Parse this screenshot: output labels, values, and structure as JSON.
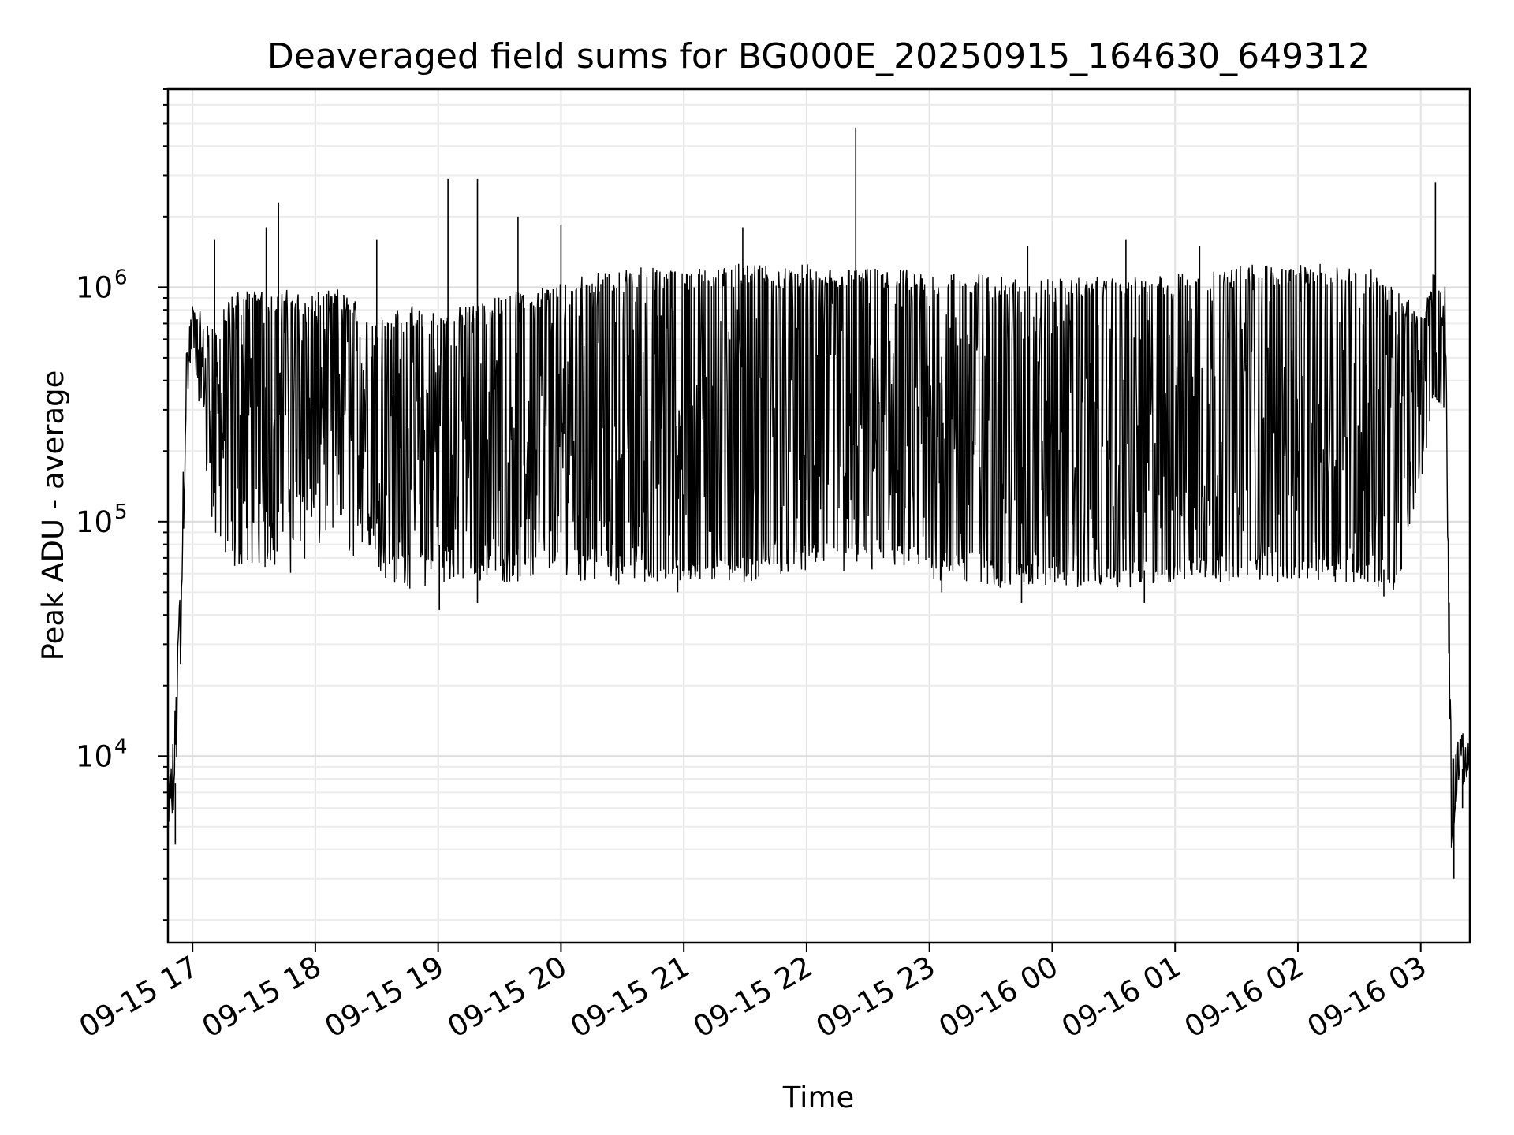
{
  "chart_data": {
    "type": "line",
    "title": "Deaveraged field sums for BG000E_20250915_164630_649312",
    "xlabel": "Time",
    "ylabel": "Peak ADU - average",
    "yscale": "log",
    "ylim": [
      1600,
      7000000
    ],
    "xlim": [
      -0.2,
      10.4
    ],
    "x_unit": "hours since 09-15 17:00",
    "grid": true,
    "x_ticks": [
      {
        "x": 0,
        "label": "09-15 17"
      },
      {
        "x": 1,
        "label": "09-15 18"
      },
      {
        "x": 2,
        "label": "09-15 19"
      },
      {
        "x": 3,
        "label": "09-15 20"
      },
      {
        "x": 4,
        "label": "09-15 21"
      },
      {
        "x": 5,
        "label": "09-15 22"
      },
      {
        "x": 6,
        "label": "09-15 23"
      },
      {
        "x": 7,
        "label": "09-16 00"
      },
      {
        "x": 8,
        "label": "09-16 01"
      },
      {
        "x": 9,
        "label": "09-16 02"
      },
      {
        "x": 10,
        "label": "09-16 03"
      }
    ],
    "y_ticks": [
      {
        "value": 10000,
        "base": "10",
        "exp": "4"
      },
      {
        "value": 100000,
        "base": "10",
        "exp": "5"
      },
      {
        "value": 1000000,
        "base": "10",
        "exp": "6"
      }
    ],
    "series": [
      {
        "name": "Peak ADU - average",
        "envelope_x": [
          -0.2,
          -0.15,
          -0.1,
          -0.05,
          0,
          0.1,
          0.2,
          0.3,
          0.4,
          0.5,
          0.6,
          0.7,
          0.8,
          0.9,
          1.0,
          1.2,
          1.4,
          1.6,
          1.8,
          2.0,
          2.2,
          2.4,
          2.6,
          2.8,
          3.0,
          3.2,
          3.4,
          3.6,
          3.8,
          4.0,
          4.2,
          4.4,
          4.6,
          4.8,
          5.0,
          5.2,
          5.4,
          5.6,
          5.8,
          6.0,
          6.2,
          6.4,
          6.6,
          6.8,
          7.0,
          7.2,
          7.4,
          7.6,
          7.8,
          8.0,
          8.2,
          8.4,
          8.6,
          8.8,
          9.0,
          9.2,
          9.4,
          9.6,
          9.8,
          10.0,
          10.1,
          10.2,
          10.25,
          10.3,
          10.35,
          10.4
        ],
        "envelope_low": [
          5000,
          6000,
          20000,
          300000,
          650000,
          250000,
          120000,
          80000,
          90000,
          100000,
          110000,
          110000,
          120000,
          120000,
          140000,
          140000,
          120000,
          80000,
          75000,
          80000,
          75000,
          70000,
          75000,
          80000,
          90000,
          75000,
          70000,
          70000,
          65000,
          65000,
          70000,
          70000,
          70000,
          75000,
          80000,
          80000,
          80000,
          80000,
          80000,
          75000,
          72000,
          70000,
          68000,
          65000,
          65000,
          65000,
          62000,
          62000,
          62000,
          65000,
          70000,
          75000,
          75000,
          75000,
          75000,
          70000,
          70000,
          65000,
          60000,
          180000,
          350000,
          300000,
          4000,
          8000,
          9000,
          8500
        ],
        "envelope_high": [
          8000,
          12000,
          60000,
          550000,
          850000,
          700000,
          650000,
          900000,
          950000,
          950000,
          950000,
          900000,
          950000,
          900000,
          900000,
          950000,
          800000,
          750000,
          800000,
          750000,
          800000,
          850000,
          900000,
          950000,
          1000000,
          1100000,
          1100000,
          1200000,
          1150000,
          1150000,
          1150000,
          1200000,
          1200000,
          1150000,
          1200000,
          1150000,
          1150000,
          1150000,
          1150000,
          1100000,
          1100000,
          1100000,
          1050000,
          1050000,
          1050000,
          1050000,
          1050000,
          1050000,
          1050000,
          1100000,
          1100000,
          1150000,
          1200000,
          1200000,
          1200000,
          1200000,
          1200000,
          1150000,
          950000,
          750000,
          1100000,
          1000000,
          9000,
          12000,
          12000,
          10500
        ],
        "noise_floor": [
          5000,
          6000,
          20000,
          300000,
          600000,
          150000,
          70000,
          60000,
          65000,
          60000,
          60000,
          65000,
          60000,
          60000,
          70000,
          70000,
          70000,
          55000,
          50000,
          55000,
          55000,
          55000,
          55000,
          55000,
          60000,
          55000,
          55000,
          52000,
          55000,
          55000,
          55000,
          55000,
          55000,
          60000,
          60000,
          60000,
          60000,
          60000,
          60000,
          55000,
          55000,
          52000,
          52000,
          52000,
          52000,
          52000,
          52000,
          52000,
          52000,
          55000,
          55000,
          55000,
          55000,
          55000,
          55000,
          55000,
          55000,
          52000,
          50000,
          130000,
          350000,
          300000,
          4000,
          7000,
          7000,
          8000
        ],
        "spikes": [
          {
            "x": 0.18,
            "value": 1600000
          },
          {
            "x": 0.7,
            "value": 2300000
          },
          {
            "x": 0.6,
            "value": 1800000
          },
          {
            "x": 2.08,
            "value": 2900000
          },
          {
            "x": 2.32,
            "value": 2900000
          },
          {
            "x": 2.65,
            "value": 2000000
          },
          {
            "x": 3.0,
            "value": 1850000
          },
          {
            "x": 4.48,
            "value": 1800000
          },
          {
            "x": 5.4,
            "value": 4800000
          },
          {
            "x": 7.6,
            "value": 1600000
          },
          {
            "x": 10.12,
            "value": 2800000
          },
          {
            "x": 1.5,
            "value": 1600000
          },
          {
            "x": 6.8,
            "value": 1500000
          },
          {
            "x": 8.2,
            "value": 1500000
          }
        ],
        "dips": [
          {
            "x": 2.01,
            "value": 42000
          },
          {
            "x": 2.32,
            "value": 45000
          },
          {
            "x": 3.95,
            "value": 50000
          },
          {
            "x": 6.1,
            "value": 50000
          },
          {
            "x": 6.75,
            "value": 45000
          },
          {
            "x": 7.75,
            "value": 45000
          },
          {
            "x": 9.7,
            "value": 48000
          },
          {
            "x": 10.27,
            "value": 3000
          },
          {
            "x": 10.34,
            "value": 6000
          },
          {
            "x": -0.14,
            "value": 4200
          }
        ]
      }
    ]
  }
}
